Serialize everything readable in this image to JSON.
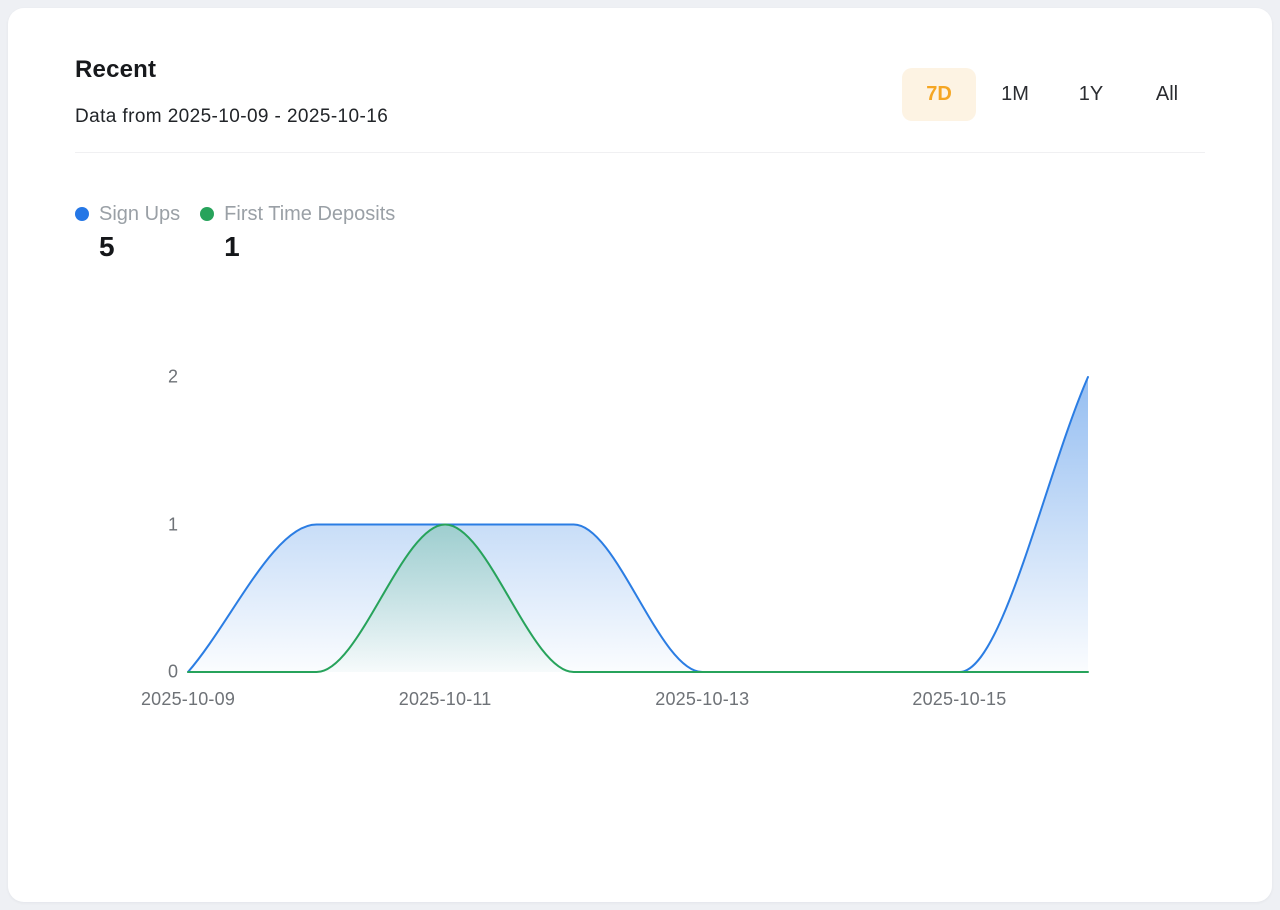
{
  "header": {
    "title": "Recent",
    "subtitle": "Data from 2025-10-09 - 2025-10-16"
  },
  "range_selector": {
    "options": [
      "7D",
      "1M",
      "1Y",
      "All"
    ],
    "active": "7D",
    "active_color": "#f5a623",
    "active_bg": "#fdf3e3"
  },
  "legend": {
    "items": [
      {
        "label": "Sign Ups",
        "value": "5",
        "color": "#2577e6"
      },
      {
        "label": "First Time Deposits",
        "value": "1",
        "color": "#27a35b"
      }
    ]
  },
  "chart_data": {
    "type": "area",
    "smooth": true,
    "grid": false,
    "legend_position": "top-left",
    "title": "Recent",
    "xlabel": "",
    "ylabel": "",
    "x": [
      "2025-10-09",
      "2025-10-10",
      "2025-10-11",
      "2025-10-12",
      "2025-10-13",
      "2025-10-14",
      "2025-10-15",
      "2025-10-16"
    ],
    "series": [
      {
        "name": "Sign Ups",
        "color": "#2b7de3",
        "total": 5,
        "values": [
          0,
          1,
          1,
          1,
          0,
          0,
          0,
          2
        ]
      },
      {
        "name": "First Time Deposits",
        "color": "#27a35b",
        "total": 1,
        "values": [
          0,
          0,
          1,
          0,
          0,
          0,
          0,
          0
        ]
      }
    ],
    "xticks": [
      "2025-10-09",
      "2025-10-11",
      "2025-10-13",
      "2025-10-15"
    ],
    "yticks": [
      0,
      1,
      2
    ],
    "ylim": [
      0,
      2
    ]
  }
}
